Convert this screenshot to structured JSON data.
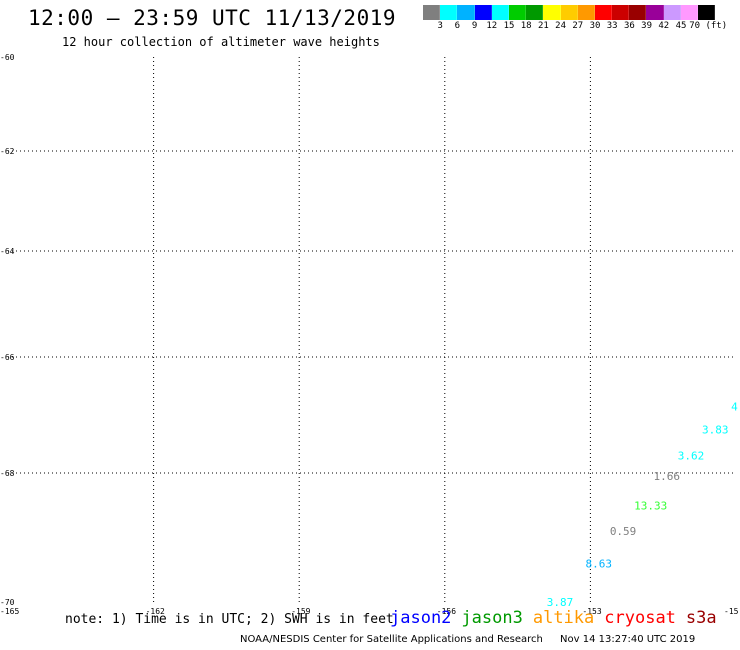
{
  "header": {
    "title": "12:00 – 23:59 UTC 11/13/2019",
    "subtitle": "12 hour collection of altimeter wave heights"
  },
  "colorbar": {
    "colors": [
      "#7f7f7f",
      "#00ffff",
      "#00b2ff",
      "#0000ff",
      "#00ffff",
      "#00cc00",
      "#009900",
      "#ffff00",
      "#ffcc00",
      "#ff9900",
      "#ff0000",
      "#cc0000",
      "#990000",
      "#990099",
      "#cc99ff",
      "#ff99ff",
      "#000000"
    ],
    "labels": [
      "3",
      "6",
      "9",
      "12",
      "15",
      "18",
      "21",
      "24",
      "27",
      "30",
      "33",
      "36",
      "39",
      "42",
      "45",
      "70 (ft)"
    ]
  },
  "map": {
    "y_tick_labels": [
      "-60",
      "-62",
      "-64",
      "-66",
      "-68",
      "-70"
    ],
    "x_tick_labels": [
      "-165",
      "-162",
      "-159",
      "-156",
      "-153",
      "-15"
    ],
    "points": [
      {
        "text": "4",
        "lon": -150.1,
        "lat": -66.85,
        "color": "#00ffff"
      },
      {
        "text": "3.83",
        "lon": -150.7,
        "lat": -67.25,
        "color": "#00ffff"
      },
      {
        "text": "3.62",
        "lon": -151.2,
        "lat": -67.7,
        "color": "#00ffff"
      },
      {
        "text": "1.66",
        "lon": -151.7,
        "lat": -68.05,
        "color": "#7f7f7f"
      },
      {
        "text": "13.33",
        "lon": -152.1,
        "lat": -68.5,
        "color": "#33ff33"
      },
      {
        "text": "0.59",
        "lon": -152.6,
        "lat": -68.9,
        "color": "#7f7f7f"
      },
      {
        "text": "8.63",
        "lon": -153.1,
        "lat": -69.4,
        "color": "#00b2ff"
      },
      {
        "text": "3.87",
        "lon": -153.9,
        "lat": -70.0,
        "color": "#00ffff"
      }
    ]
  },
  "note": "note: 1) Time is in UTC; 2) SWH is in feet",
  "legend": [
    {
      "name": "jason2",
      "color": "#0000ff"
    },
    {
      "name": "jason3",
      "color": "#009900"
    },
    {
      "name": "altika",
      "color": "#ff9900"
    },
    {
      "name": "cryosat",
      "color": "#ff0000"
    },
    {
      "name": "s3a",
      "color": "#990000"
    }
  ],
  "footer": {
    "left": "NOAA/NESDIS Center for Satellite Applications and Research",
    "right": "Nov 14 13:27:40 UTC 2019"
  }
}
